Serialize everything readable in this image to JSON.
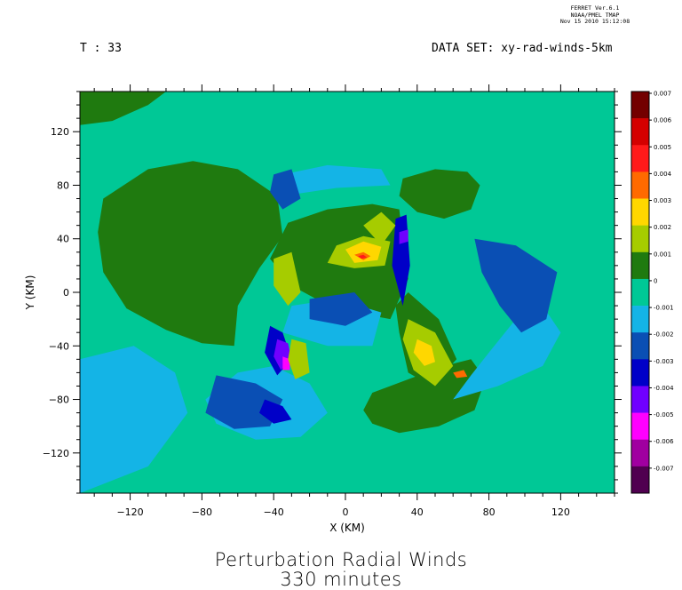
{
  "header": {
    "stamp": [
      "FERRET Ver.6.1",
      "NOAA/PMEL TMAP",
      "Nov 15 2010 15:12:08"
    ],
    "time_label": "T : 33",
    "dataset_label": "DATA SET: xy-rad-winds-5km"
  },
  "title": {
    "line1": "Perturbation Radial Winds",
    "line2": "330 minutes"
  },
  "chart_data": {
    "type": "heatmap",
    "xlabel": "X (KM)",
    "ylabel": "Y (KM)",
    "xlim": [
      -148,
      150
    ],
    "ylim": [
      -150,
      150
    ],
    "x_ticks": [
      -120,
      -80,
      -40,
      0,
      40,
      80,
      120
    ],
    "y_ticks": [
      120,
      80,
      40,
      0,
      -40,
      -80,
      -120
    ],
    "minor_step": 10,
    "background_value": 0,
    "colorbar": {
      "levels": [
        "0.007",
        "0.006",
        "0.005",
        "0.004",
        "0.003",
        "0.002",
        "0.001",
        "0",
        "-0.001",
        "-0.002",
        "-0.003",
        "-0.004",
        "-0.005",
        "-0.006",
        "-0.007"
      ],
      "colors": [
        "#730000",
        "#d40000",
        "#ff1a1a",
        "#ff6a00",
        "#ffd700",
        "#a6cc00",
        "#1f7a0f",
        "#00c896",
        "#14b4e6",
        "#0a4fb4",
        "#0000c8",
        "#7000ff",
        "#ff00ff",
        "#a000a0",
        "#500050"
      ]
    },
    "regions": [
      {
        "name": "west-green-band",
        "value": 0.001,
        "points": [
          [
            -135,
            70
          ],
          [
            -110,
            92
          ],
          [
            -85,
            98
          ],
          [
            -60,
            92
          ],
          [
            -38,
            72
          ],
          [
            -35,
            42
          ],
          [
            -48,
            18
          ],
          [
            -60,
            -10
          ],
          [
            -62,
            -40
          ],
          [
            -80,
            -38
          ],
          [
            -100,
            -28
          ],
          [
            -122,
            -12
          ],
          [
            -135,
            15
          ],
          [
            -138,
            45
          ]
        ]
      },
      {
        "name": "north-west-green",
        "value": 0.001,
        "points": [
          [
            -148,
            150
          ],
          [
            -100,
            150
          ],
          [
            -110,
            140
          ],
          [
            -130,
            128
          ],
          [
            -148,
            125
          ]
        ]
      },
      {
        "name": "north-east-green",
        "value": 0.001,
        "points": [
          [
            32,
            85
          ],
          [
            50,
            92
          ],
          [
            68,
            90
          ],
          [
            75,
            80
          ],
          [
            70,
            62
          ],
          [
            55,
            55
          ],
          [
            40,
            60
          ],
          [
            30,
            72
          ]
        ]
      },
      {
        "name": "south-east-green",
        "value": 0.001,
        "points": [
          [
            15,
            -75
          ],
          [
            35,
            -65
          ],
          [
            55,
            -55
          ],
          [
            70,
            -50
          ],
          [
            78,
            -65
          ],
          [
            72,
            -88
          ],
          [
            52,
            -100
          ],
          [
            30,
            -105
          ],
          [
            15,
            -98
          ],
          [
            10,
            -88
          ]
        ]
      },
      {
        "name": "center-green-ring",
        "value": 0.001,
        "points": [
          [
            -32,
            52
          ],
          [
            -10,
            62
          ],
          [
            15,
            66
          ],
          [
            30,
            62
          ],
          [
            32,
            40
          ],
          [
            35,
            10
          ],
          [
            25,
            -20
          ],
          [
            5,
            -15
          ],
          [
            -12,
            -8
          ],
          [
            -30,
            5
          ],
          [
            -42,
            25
          ]
        ]
      },
      {
        "name": "east-green-strip",
        "value": 0.001,
        "points": [
          [
            35,
            0
          ],
          [
            52,
            -20
          ],
          [
            62,
            -50
          ],
          [
            48,
            -70
          ],
          [
            35,
            -60
          ],
          [
            30,
            -30
          ],
          [
            28,
            -10
          ]
        ]
      },
      {
        "name": "south-blue-1",
        "value": -0.001,
        "points": [
          [
            -60,
            -60
          ],
          [
            -40,
            -55
          ],
          [
            -20,
            -68
          ],
          [
            -10,
            -90
          ],
          [
            -25,
            -108
          ],
          [
            -50,
            -110
          ],
          [
            -72,
            -98
          ],
          [
            -78,
            -80
          ]
        ]
      },
      {
        "name": "southeast-blue-1",
        "value": -0.001,
        "points": [
          [
            60,
            -80
          ],
          [
            85,
            -70
          ],
          [
            110,
            -55
          ],
          [
            120,
            -30
          ],
          [
            110,
            -10
          ],
          [
            95,
            -20
          ],
          [
            80,
            -45
          ],
          [
            70,
            -62
          ]
        ]
      },
      {
        "name": "southwest-blue-1",
        "value": -0.001,
        "points": [
          [
            -148,
            -50
          ],
          [
            -118,
            -40
          ],
          [
            -95,
            -60
          ],
          [
            -88,
            -90
          ],
          [
            -110,
            -130
          ],
          [
            -148,
            -150
          ]
        ]
      },
      {
        "name": "center-blue-1",
        "value": -0.001,
        "points": [
          [
            -30,
            -10
          ],
          [
            -5,
            -5
          ],
          [
            20,
            -15
          ],
          [
            15,
            -40
          ],
          [
            -10,
            -40
          ],
          [
            -35,
            -30
          ]
        ]
      },
      {
        "name": "north-blue-1",
        "value": -0.001,
        "points": [
          [
            -35,
            88
          ],
          [
            -10,
            95
          ],
          [
            20,
            92
          ],
          [
            25,
            80
          ],
          [
            -5,
            78
          ],
          [
            -35,
            72
          ]
        ]
      },
      {
        "name": "east-blue-2",
        "value": -0.002,
        "points": [
          [
            72,
            40
          ],
          [
            95,
            35
          ],
          [
            118,
            15
          ],
          [
            112,
            -20
          ],
          [
            98,
            -30
          ],
          [
            86,
            -10
          ],
          [
            76,
            15
          ]
        ]
      },
      {
        "name": "north-blue-2",
        "value": -0.002,
        "points": [
          [
            -40,
            88
          ],
          [
            -30,
            92
          ],
          [
            -25,
            70
          ],
          [
            -35,
            62
          ],
          [
            -42,
            75
          ]
        ]
      },
      {
        "name": "center-blue-2",
        "value": -0.002,
        "points": [
          [
            -20,
            -5
          ],
          [
            5,
            0
          ],
          [
            15,
            -15
          ],
          [
            0,
            -25
          ],
          [
            -20,
            -20
          ]
        ]
      },
      {
        "name": "south-blue-2",
        "value": -0.002,
        "points": [
          [
            -72,
            -62
          ],
          [
            -50,
            -68
          ],
          [
            -35,
            -80
          ],
          [
            -42,
            -100
          ],
          [
            -62,
            -102
          ],
          [
            -78,
            -90
          ]
        ]
      },
      {
        "name": "south-blue-3",
        "value": -0.003,
        "points": [
          [
            -45,
            -80
          ],
          [
            -35,
            -85
          ],
          [
            -30,
            -95
          ],
          [
            -40,
            -98
          ],
          [
            -48,
            -90
          ]
        ]
      },
      {
        "name": "west-blue-3",
        "value": -0.003,
        "points": [
          [
            -42,
            -25
          ],
          [
            -35,
            -30
          ],
          [
            -30,
            -50
          ],
          [
            -38,
            -62
          ],
          [
            -45,
            -45
          ]
        ]
      },
      {
        "name": "east-blue-3",
        "value": -0.003,
        "points": [
          [
            28,
            55
          ],
          [
            34,
            58
          ],
          [
            36,
            20
          ],
          [
            32,
            -10
          ],
          [
            26,
            20
          ]
        ]
      },
      {
        "name": "west-violet",
        "value": -0.004,
        "points": [
          [
            -38,
            -35
          ],
          [
            -32,
            -38
          ],
          [
            -30,
            -50
          ],
          [
            -36,
            -58
          ],
          [
            -40,
            -48
          ]
        ]
      },
      {
        "name": "east-violet",
        "value": -0.004,
        "points": [
          [
            30,
            45
          ],
          [
            35,
            47
          ],
          [
            35,
            38
          ],
          [
            30,
            36
          ]
        ]
      },
      {
        "name": "west-magenta",
        "value": -0.005,
        "points": [
          [
            -35,
            -48
          ],
          [
            -31,
            -50
          ],
          [
            -31,
            -58
          ],
          [
            -35,
            -58
          ]
        ]
      },
      {
        "name": "center-yellowgreen",
        "value": 0.002,
        "points": [
          [
            -5,
            35
          ],
          [
            10,
            42
          ],
          [
            25,
            38
          ],
          [
            22,
            20
          ],
          [
            5,
            18
          ],
          [
            -10,
            22
          ]
        ]
      },
      {
        "name": "east-yellowgreen",
        "value": 0.002,
        "points": [
          [
            35,
            -20
          ],
          [
            50,
            -30
          ],
          [
            60,
            -55
          ],
          [
            50,
            -70
          ],
          [
            38,
            -58
          ],
          [
            32,
            -35
          ]
        ]
      },
      {
        "name": "west-yellowgreen",
        "value": 0.002,
        "points": [
          [
            -40,
            25
          ],
          [
            -30,
            30
          ],
          [
            -25,
            0
          ],
          [
            -32,
            -10
          ],
          [
            -40,
            5
          ]
        ]
      },
      {
        "name": "east-yellowgreen-2",
        "value": 0.002,
        "points": [
          [
            10,
            50
          ],
          [
            20,
            60
          ],
          [
            28,
            50
          ],
          [
            20,
            35
          ]
        ]
      },
      {
        "name": "south-yellowgreen",
        "value": 0.002,
        "points": [
          [
            -30,
            -35
          ],
          [
            -22,
            -38
          ],
          [
            -20,
            -60
          ],
          [
            -28,
            -65
          ],
          [
            -32,
            -50
          ]
        ]
      },
      {
        "name": "center-yellow",
        "value": 0.003,
        "points": [
          [
            0,
            32
          ],
          [
            10,
            38
          ],
          [
            20,
            34
          ],
          [
            18,
            24
          ],
          [
            5,
            22
          ]
        ]
      },
      {
        "name": "east-yellow",
        "value": 0.003,
        "points": [
          [
            40,
            -35
          ],
          [
            48,
            -40
          ],
          [
            50,
            -52
          ],
          [
            44,
            -55
          ],
          [
            38,
            -45
          ]
        ]
      },
      {
        "name": "center-orange",
        "value": 0.004,
        "points": [
          [
            5,
            28
          ],
          [
            10,
            30
          ],
          [
            14,
            27
          ],
          [
            10,
            24
          ]
        ]
      },
      {
        "name": "east-orange",
        "value": 0.004,
        "points": [
          [
            60,
            -60
          ],
          [
            66,
            -58
          ],
          [
            68,
            -63
          ],
          [
            62,
            -64
          ]
        ]
      },
      {
        "name": "center-red",
        "value": 0.005,
        "points": [
          [
            7,
            27
          ],
          [
            10,
            28
          ],
          [
            12,
            26
          ],
          [
            9,
            25
          ]
        ]
      }
    ]
  }
}
